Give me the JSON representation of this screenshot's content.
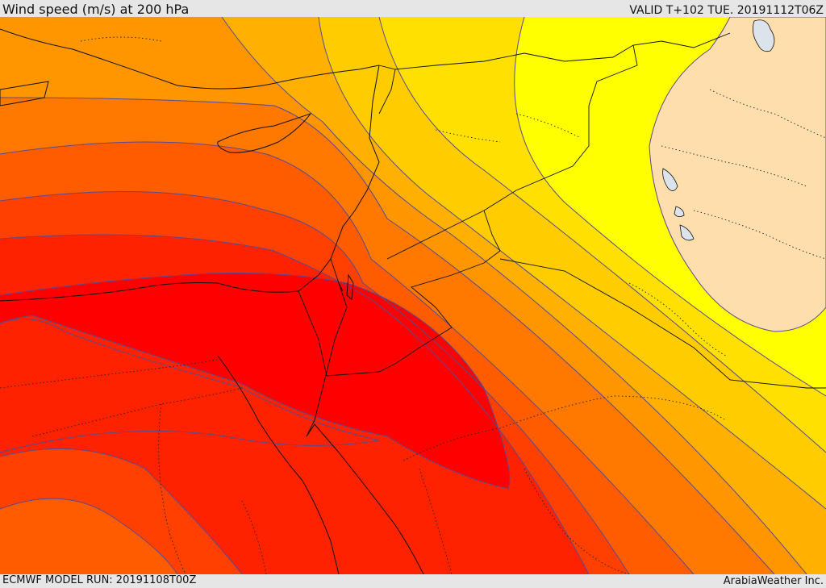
{
  "header": {
    "title": "Wind speed (m/s) at 200 hPa",
    "valid_time": "VALID T+102 TUE. 20191112T06Z"
  },
  "footer": {
    "model_run": "ECMWF MODEL RUN: 20191108T00Z",
    "credit": "ArabiaWeather Inc."
  },
  "colors": {
    "band_red_core": "#ff0000",
    "band_red": "#ff2200",
    "band_red_orange": "#ff4000",
    "band_orange_red": "#ff5c00",
    "band_dark_orange": "#ff7800",
    "band_orange": "#ff9600",
    "band_amber": "#ffb000",
    "band_gold": "#ffcc00",
    "band_yellow_gold": "#ffe000",
    "band_yellow": "#ffff00",
    "masked_region": "#ffdead",
    "lakes": "#dde3ea",
    "contour_line": "#5a4a8c",
    "coastline": "#111111"
  }
}
